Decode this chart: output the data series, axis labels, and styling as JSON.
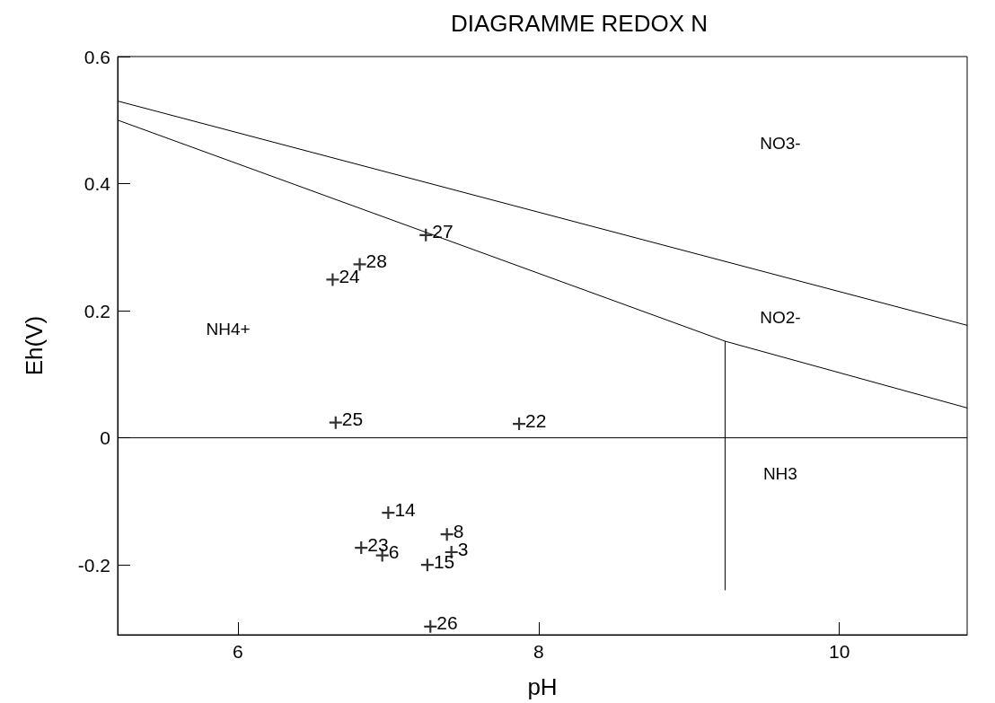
{
  "chart_data": {
    "type": "scatter",
    "title": "DIAGRAMME REDOX N",
    "xlabel": "pH",
    "ylabel": "Eh(V)",
    "xlim": [
      5.2,
      10.85
    ],
    "ylim": [
      -0.31,
      0.6
    ],
    "xticks": [
      6,
      8,
      10
    ],
    "yticks": [
      -0.2,
      0,
      0.2,
      0.4,
      0.6
    ],
    "grid": false,
    "series": [
      {
        "type": "line",
        "color": "#000000",
        "x": [
          5.2,
          10.85
        ],
        "values": [
          0.53,
          0.177
        ],
        "marker": "none"
      },
      {
        "type": "line",
        "color": "#000000",
        "x": [
          5.2,
          9.24,
          10.85
        ],
        "values": [
          0.5,
          0.152,
          0.047
        ],
        "marker": "none"
      },
      {
        "type": "line",
        "color": "#000000",
        "x": [
          5.2,
          10.85
        ],
        "values": [
          0,
          0
        ],
        "marker": "none"
      },
      {
        "type": "line",
        "color": "#000000",
        "x": [
          9.24,
          9.24
        ],
        "values": [
          0.152,
          -0.24
        ],
        "marker": "none"
      },
      {
        "type": "scatter",
        "color": "#000000",
        "marker": "cross",
        "x": [
          7.25,
          6.81,
          6.63,
          6.65,
          7.87,
          7.28,
          7.0,
          6.82,
          6.96,
          7.26,
          7.39,
          7.42
        ],
        "values": [
          0.319,
          0.273,
          0.249,
          0.024,
          0.022,
          -0.297,
          -0.118,
          -0.173,
          -0.185,
          -0.2,
          -0.152,
          -0.18
        ]
      }
    ],
    "annotations": [
      "NH4+",
      "NO3-",
      "NO2-",
      "NH3",
      {
        "text": "27",
        "x": 7.25,
        "y": 0.319
      },
      {
        "text": "28",
        "x": 6.81,
        "y": 0.273
      },
      {
        "text": "24",
        "x": 6.63,
        "y": 0.249
      },
      {
        "text": "25",
        "x": 6.65,
        "y": 0.024
      },
      {
        "text": "22",
        "x": 7.87,
        "y": 0.022
      },
      {
        "text": "26",
        "x": 7.28,
        "y": -0.297
      },
      {
        "text": "14",
        "x": 7.0,
        "y": -0.118
      },
      {
        "text": "23",
        "x": 6.82,
        "y": -0.173
      },
      {
        "text": "6",
        "x": 6.96,
        "y": -0.185
      },
      {
        "text": "15",
        "x": 7.26,
        "y": -0.2
      },
      {
        "text": "8",
        "x": 7.39,
        "y": -0.152
      },
      {
        "text": "3",
        "x": 7.42,
        "y": -0.18
      }
    ]
  }
}
